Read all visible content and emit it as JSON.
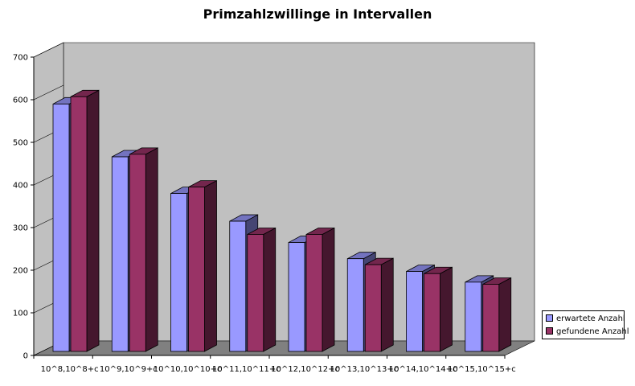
{
  "chart_data": {
    "type": "bar",
    "title": "Primzahlzwillinge in Intervallen",
    "xlabel": "",
    "ylabel": "",
    "ylim": [
      0,
      700
    ],
    "yticks": [
      0,
      100,
      200,
      300,
      400,
      500,
      600,
      700
    ],
    "grid": false,
    "legend_position": "right",
    "categories": [
      "10^8,10^8+c",
      "10^9,10^9+c",
      "10^10,10^10+c",
      "10^11,10^11+c",
      "10^12,10^12+c",
      "10^13,10^13+c",
      "10^14,10^14+c",
      "10^15,10^15+c"
    ],
    "series": [
      {
        "name": "erwartete Anzahl",
        "color": "#9999ff",
        "values": [
          590,
          466,
          380,
          315,
          265,
          227,
          197,
          172
        ]
      },
      {
        "name": "gefundene Anzahl",
        "color": "#993366",
        "values": [
          607,
          472,
          395,
          284,
          284,
          213,
          192,
          167
        ]
      }
    ],
    "wall_color": "#c0c0c0",
    "floor_color": "#808080"
  }
}
